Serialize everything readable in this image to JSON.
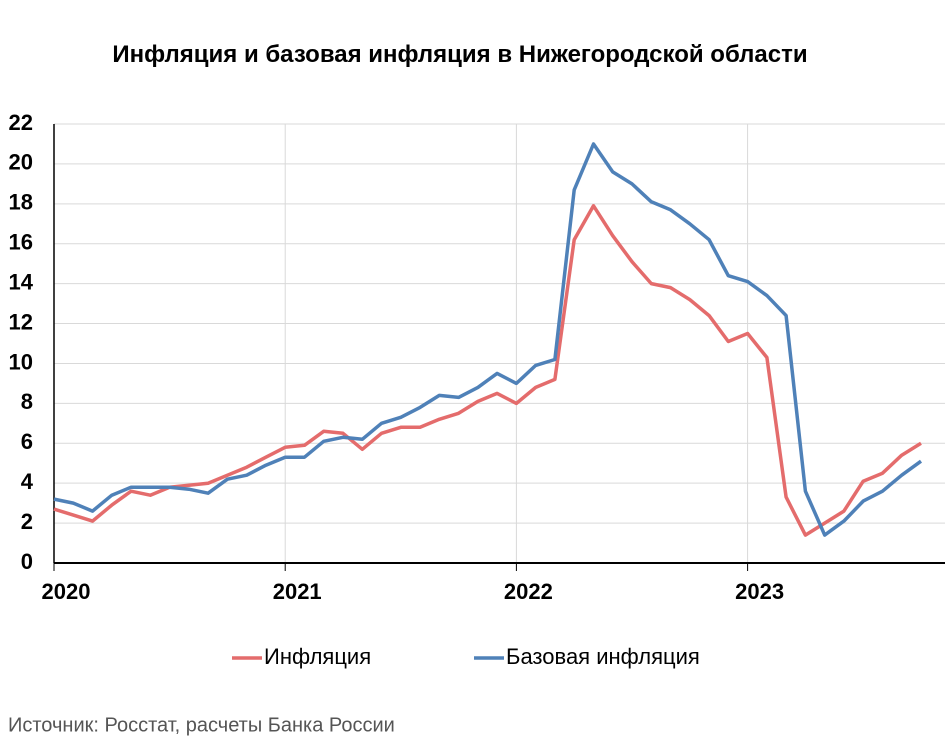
{
  "chart_data": {
    "type": "line",
    "title": "Инфляция и базовая инфляция в Нижегородской области",
    "source": "Источник: Росстат, расчеты Банка России",
    "categories": [
      "2020",
      null,
      null,
      null,
      null,
      null,
      null,
      null,
      null,
      null,
      null,
      null,
      "2021",
      null,
      null,
      null,
      null,
      null,
      null,
      null,
      null,
      null,
      null,
      null,
      "2022",
      null,
      null,
      null,
      null,
      null,
      null,
      null,
      null,
      null,
      null,
      null,
      "2023",
      null,
      null,
      null,
      null,
      null,
      null,
      null,
      null,
      null
    ],
    "series": [
      {
        "name": "Инфляция",
        "color": "#e46c6c",
        "values": [
          2.7,
          2.4,
          2.1,
          2.9,
          3.6,
          3.4,
          3.8,
          3.9,
          4.0,
          4.4,
          4.8,
          5.3,
          5.8,
          5.9,
          6.6,
          6.5,
          5.7,
          6.5,
          6.8,
          6.8,
          7.2,
          7.5,
          8.1,
          8.5,
          8.0,
          8.8,
          9.2,
          16.2,
          17.9,
          16.4,
          15.1,
          14.0,
          13.8,
          13.2,
          12.4,
          11.1,
          11.5,
          10.3,
          3.3,
          1.4,
          2.0,
          2.6,
          4.1,
          4.5,
          5.4,
          6.0
        ]
      },
      {
        "name": "Базовая инфляция",
        "color": "#4f81b8",
        "values": [
          3.2,
          3.0,
          2.6,
          3.4,
          3.8,
          3.8,
          3.8,
          3.7,
          3.5,
          4.2,
          4.4,
          4.9,
          5.3,
          5.3,
          6.1,
          6.3,
          6.2,
          7.0,
          7.3,
          7.8,
          8.4,
          8.3,
          8.8,
          9.5,
          9.0,
          9.9,
          10.2,
          18.7,
          21.0,
          19.6,
          19.0,
          18.1,
          17.7,
          17.0,
          16.2,
          14.4,
          14.1,
          13.4,
          12.4,
          3.6,
          1.4,
          2.1,
          3.1,
          3.6,
          4.4,
          5.1
        ]
      }
    ],
    "ylim": [
      0,
      22
    ],
    "yticks": [
      0,
      2,
      4,
      6,
      8,
      10,
      12,
      14,
      16,
      18,
      20,
      22
    ],
    "grid": true,
    "legend": "bottom"
  }
}
